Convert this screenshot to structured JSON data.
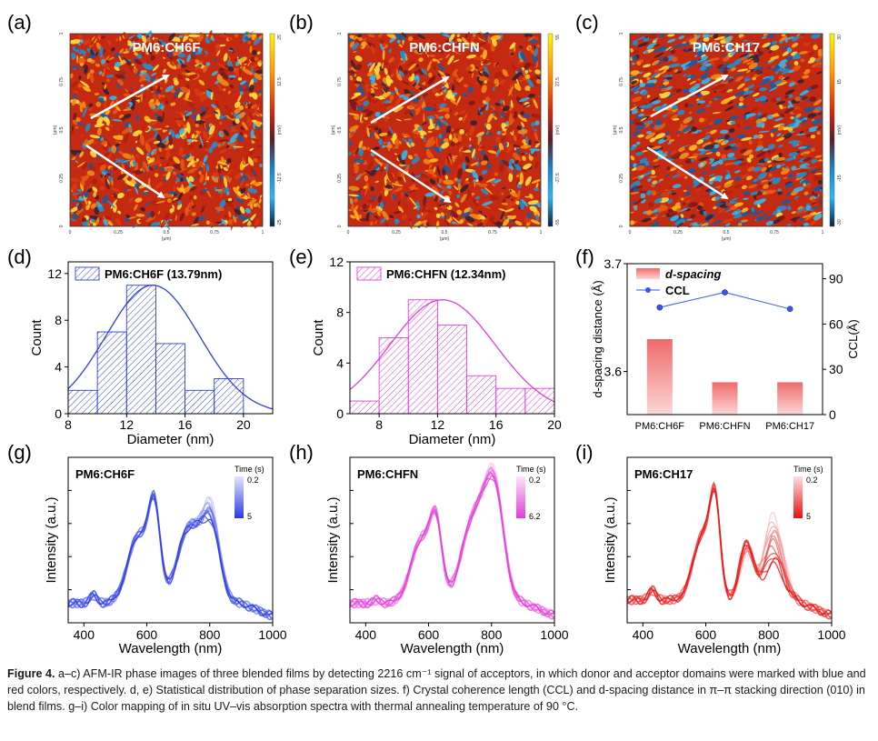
{
  "panel_labels": [
    "(a)",
    "(b)",
    "(c)",
    "(d)",
    "(e)",
    "(f)",
    "(g)",
    "(h)",
    "(i)"
  ],
  "afm": [
    {
      "title": "PM6:CH6F",
      "cb_top": "25",
      "cb_mid1": "12.5",
      "cb_mid2": "-12.5",
      "cb_bottom": "-25",
      "cb_unit": "(mV)",
      "arrow_color": "#ffffff"
    },
    {
      "title": "PM6:CHFN",
      "cb_top": "55",
      "cb_mid1": "27.5",
      "cb_mid2": "-27.5",
      "cb_bottom": "-55",
      "cb_unit": "(mV)",
      "arrow_color": "#ffffff"
    },
    {
      "title": "PM6:CH17",
      "cb_top": "30",
      "cb_mid1": "15",
      "cb_mid2": "-15",
      "cb_bottom": "-30",
      "cb_unit": "(mV)",
      "arrow_color": "#ffffff"
    }
  ],
  "afm_axis": {
    "unit": "(μm)",
    "ticks": [
      "0",
      "0.25",
      "0.5",
      "0.75",
      "1"
    ]
  },
  "chart_data": [
    {
      "type": "bar",
      "panel": "d",
      "legend": "PM6:CH6F (13.79nm)",
      "color": "#2f3fe0",
      "xlabel": "Diameter (nm)",
      "ylabel": "Count",
      "xlim": [
        8,
        22
      ],
      "ylim": [
        0,
        13
      ],
      "xticks": [
        8,
        12,
        16,
        20
      ],
      "yticks": [
        0,
        4,
        8,
        12
      ],
      "bin_edges": [
        8,
        10,
        12,
        14,
        16,
        18,
        20
      ],
      "values": [
        2,
        7,
        11,
        6,
        2,
        3
      ],
      "fit": {
        "mean": 13.79,
        "sigma": 3.2,
        "amp": 11
      }
    },
    {
      "type": "bar",
      "panel": "e",
      "legend": "PM6:CHFN (12.34nm)",
      "color": "#e040d8",
      "xlabel": "Diameter (nm)",
      "ylabel": "Count",
      "xlim": [
        6,
        20
      ],
      "ylim": [
        0,
        12
      ],
      "xticks": [
        8,
        12,
        16,
        20
      ],
      "yticks": [
        0,
        4,
        8,
        12
      ],
      "bin_edges": [
        6,
        8,
        10,
        12,
        14,
        16,
        18,
        20
      ],
      "values": [
        1,
        6,
        9,
        7,
        3,
        2,
        2
      ],
      "fit": {
        "mean": 12.34,
        "sigma": 3.6,
        "amp": 9
      }
    },
    {
      "type": "bar",
      "panel": "f",
      "categories": [
        "PM6:CH6F",
        "PM6:CHFN",
        "PM6:CH17"
      ],
      "series": [
        {
          "name": "d-spacing",
          "values": [
            3.63,
            3.59,
            3.59
          ],
          "color": "#f07070"
        },
        {
          "name": "CCL",
          "values": [
            71,
            81,
            70
          ],
          "color": "#3a55e8"
        }
      ],
      "ylabel_left": "d-spacing distance (Å)",
      "ylabel_right": "CCL(Å)",
      "ylim_left": [
        3.56,
        3.7
      ],
      "ylim_right": [
        0,
        100
      ],
      "yticks_left": [
        3.6,
        3.7
      ],
      "yticks_right": [
        0,
        30,
        60,
        90
      ]
    },
    {
      "type": "line",
      "panel": "g",
      "title": "PM6:CH6F",
      "legend_title": "Time (s)",
      "legend_top": "0.2",
      "legend_bottom": "5",
      "color_start": "#c8ccf8",
      "color_end": "#2a3ae8",
      "xlabel": "Wavelength (nm)",
      "ylabel": "Intensity (a.u.)",
      "xlim": [
        350,
        1000
      ],
      "xticks": [
        400,
        600,
        800,
        1000
      ]
    },
    {
      "type": "line",
      "panel": "h",
      "title": "PM6:CHFN",
      "legend_title": "Time (s)",
      "legend_top": "0.2",
      "legend_bottom": "6.2",
      "color_start": "#fbd0f8",
      "color_end": "#e33ad8",
      "xlabel": "Wavelength (nm)",
      "ylabel": "Intensity (a.u.)",
      "xlim": [
        350,
        1000
      ],
      "xticks": [
        400,
        600,
        800,
        1000
      ]
    },
    {
      "type": "line",
      "panel": "i",
      "title": "PM6:CH17",
      "legend_title": "Time (s)",
      "legend_top": "0.2",
      "legend_bottom": "5",
      "color_start": "#f8c8c8",
      "color_end": "#e81010",
      "xlabel": "Wavelength (nm)",
      "ylabel": "Intensity (a.u.)",
      "xlim": [
        350,
        1000
      ],
      "xticks": [
        400,
        600,
        800,
        1000
      ]
    }
  ],
  "caption": {
    "label": "Figure 4.",
    "text": " a–c) AFM-IR phase images of three blended films by detecting 2216 cm⁻¹ signal of acceptors, in which donor and acceptor domains were marked with blue and red colors, respectively. d, e) Statistical distribution of phase separation sizes. f) Crystal coherence length (CCL) and d-spacing distance in π–π stacking direction (010) in blend films. g–i) Color mapping of in situ UV–vis absorption spectra with thermal annealing temperature of 90 °C."
  }
}
